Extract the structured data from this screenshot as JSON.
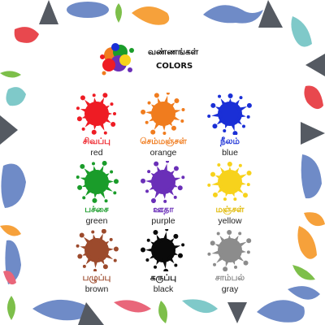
{
  "title": {
    "tamil": "வண்ணங்கள்",
    "english": "COLORS"
  },
  "colors": [
    {
      "tamil": "சிவப்பு",
      "english": "red",
      "hex": "#ee1c24",
      "label_color": "#ee1c24"
    },
    {
      "tamil": "செம்மஞ்சள்",
      "english": "orange",
      "hex": "#f07c1e",
      "label_color": "#f07c1e"
    },
    {
      "tamil": "நீலம்",
      "english": "blue",
      "hex": "#1a2fd6",
      "label_color": "#1a2fd6"
    },
    {
      "tamil": "பச்சை",
      "english": "green",
      "hex": "#1a9c2a",
      "label_color": "#1a9c2a"
    },
    {
      "tamil": "ஊதா",
      "english": "purple",
      "hex": "#6a2fb8",
      "label_color": "#6a2fb8"
    },
    {
      "tamil": "மஞ்சள்",
      "english": "yellow",
      "hex": "#f7d21c",
      "label_color": "#e0b800"
    },
    {
      "tamil": "பழுப்பு",
      "english": "brown",
      "hex": "#9c4a2c",
      "label_color": "#9c4a2c"
    },
    {
      "tamil": "கருப்பு",
      "english": "black",
      "hex": "#0a0a0a",
      "label_color": "#0a0a0a"
    },
    {
      "tamil": "சாம்பல்",
      "english": "gray",
      "hex": "#8c8c8c",
      "label_color": "#8c8c8c"
    }
  ],
  "border_colors": {
    "blue_dino": "#6f8bc7",
    "teal_dino": "#7fc9c9",
    "red_dino": "#e8484e",
    "orange_dino": "#f6a13b",
    "green_leaf": "#7dbf4a",
    "pink_dino": "#e9667a",
    "gray_volcano": "#555a62"
  }
}
